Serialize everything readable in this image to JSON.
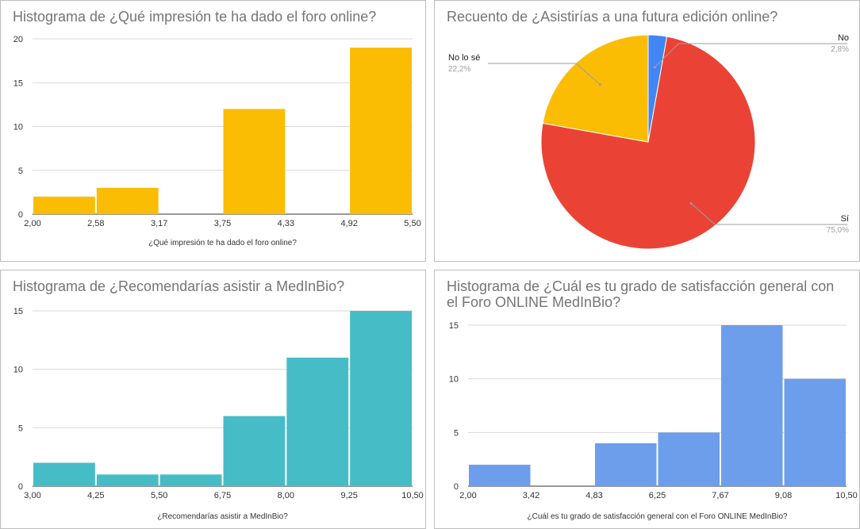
{
  "chart_data": [
    {
      "type": "bar",
      "title": "Histograma de ¿Qué impresión te ha dado el foro online?",
      "xlabel": "¿Qué impresión te ha dado el foro online?",
      "ylabel": "",
      "x_ticks": [
        "2,00",
        "2,58",
        "3,17",
        "3,75",
        "4,33",
        "4,92",
        "5,50"
      ],
      "y_ticks": [
        "0",
        "5",
        "10",
        "15",
        "20"
      ],
      "ylim": [
        0,
        20
      ],
      "values": [
        2,
        3,
        0,
        12,
        0,
        19
      ],
      "color": "#FBBC04"
    },
    {
      "type": "pie",
      "title": "Recuento de ¿Asistirías a una futura edición online?",
      "slices": [
        {
          "label": "No",
          "pct_label": "2,8%",
          "value": 2.8,
          "color": "#4285F4"
        },
        {
          "label": "Sí",
          "pct_label": "75,0%",
          "value": 75.0,
          "color": "#EA4335"
        },
        {
          "label": "No lo sé",
          "pct_label": "22,2%",
          "value": 22.2,
          "color": "#FBBC04"
        }
      ]
    },
    {
      "type": "bar",
      "title": "Histograma de ¿Recomendarías asistir a MedInBio?",
      "xlabel": "¿Recomendarías asistir a MedInBio?",
      "ylabel": "",
      "x_ticks": [
        "3,00",
        "4,25",
        "5,50",
        "6,75",
        "8,00",
        "9,25",
        "10,50"
      ],
      "y_ticks": [
        "0",
        "5",
        "10",
        "15"
      ],
      "ylim": [
        0,
        15
      ],
      "values": [
        2,
        1,
        1,
        6,
        11,
        15
      ],
      "color": "#46BDC6"
    },
    {
      "type": "bar",
      "title": "Histograma de ¿Cuál es tu grado de satisfacción general con el Foro ONLINE MedInBio?",
      "xlabel": "¿Cuál es tu grado de satisfacción general con el Foro ONLINE MedInBio?",
      "ylabel": "",
      "x_ticks": [
        "2,00",
        "3,42",
        "4,83",
        "6,25",
        "7,67",
        "9,08",
        "10,50"
      ],
      "y_ticks": [
        "0",
        "5",
        "10",
        "15"
      ],
      "ylim": [
        0,
        15
      ],
      "values": [
        2,
        0,
        4,
        5,
        15,
        10
      ],
      "color": "#6D9EEB"
    }
  ]
}
